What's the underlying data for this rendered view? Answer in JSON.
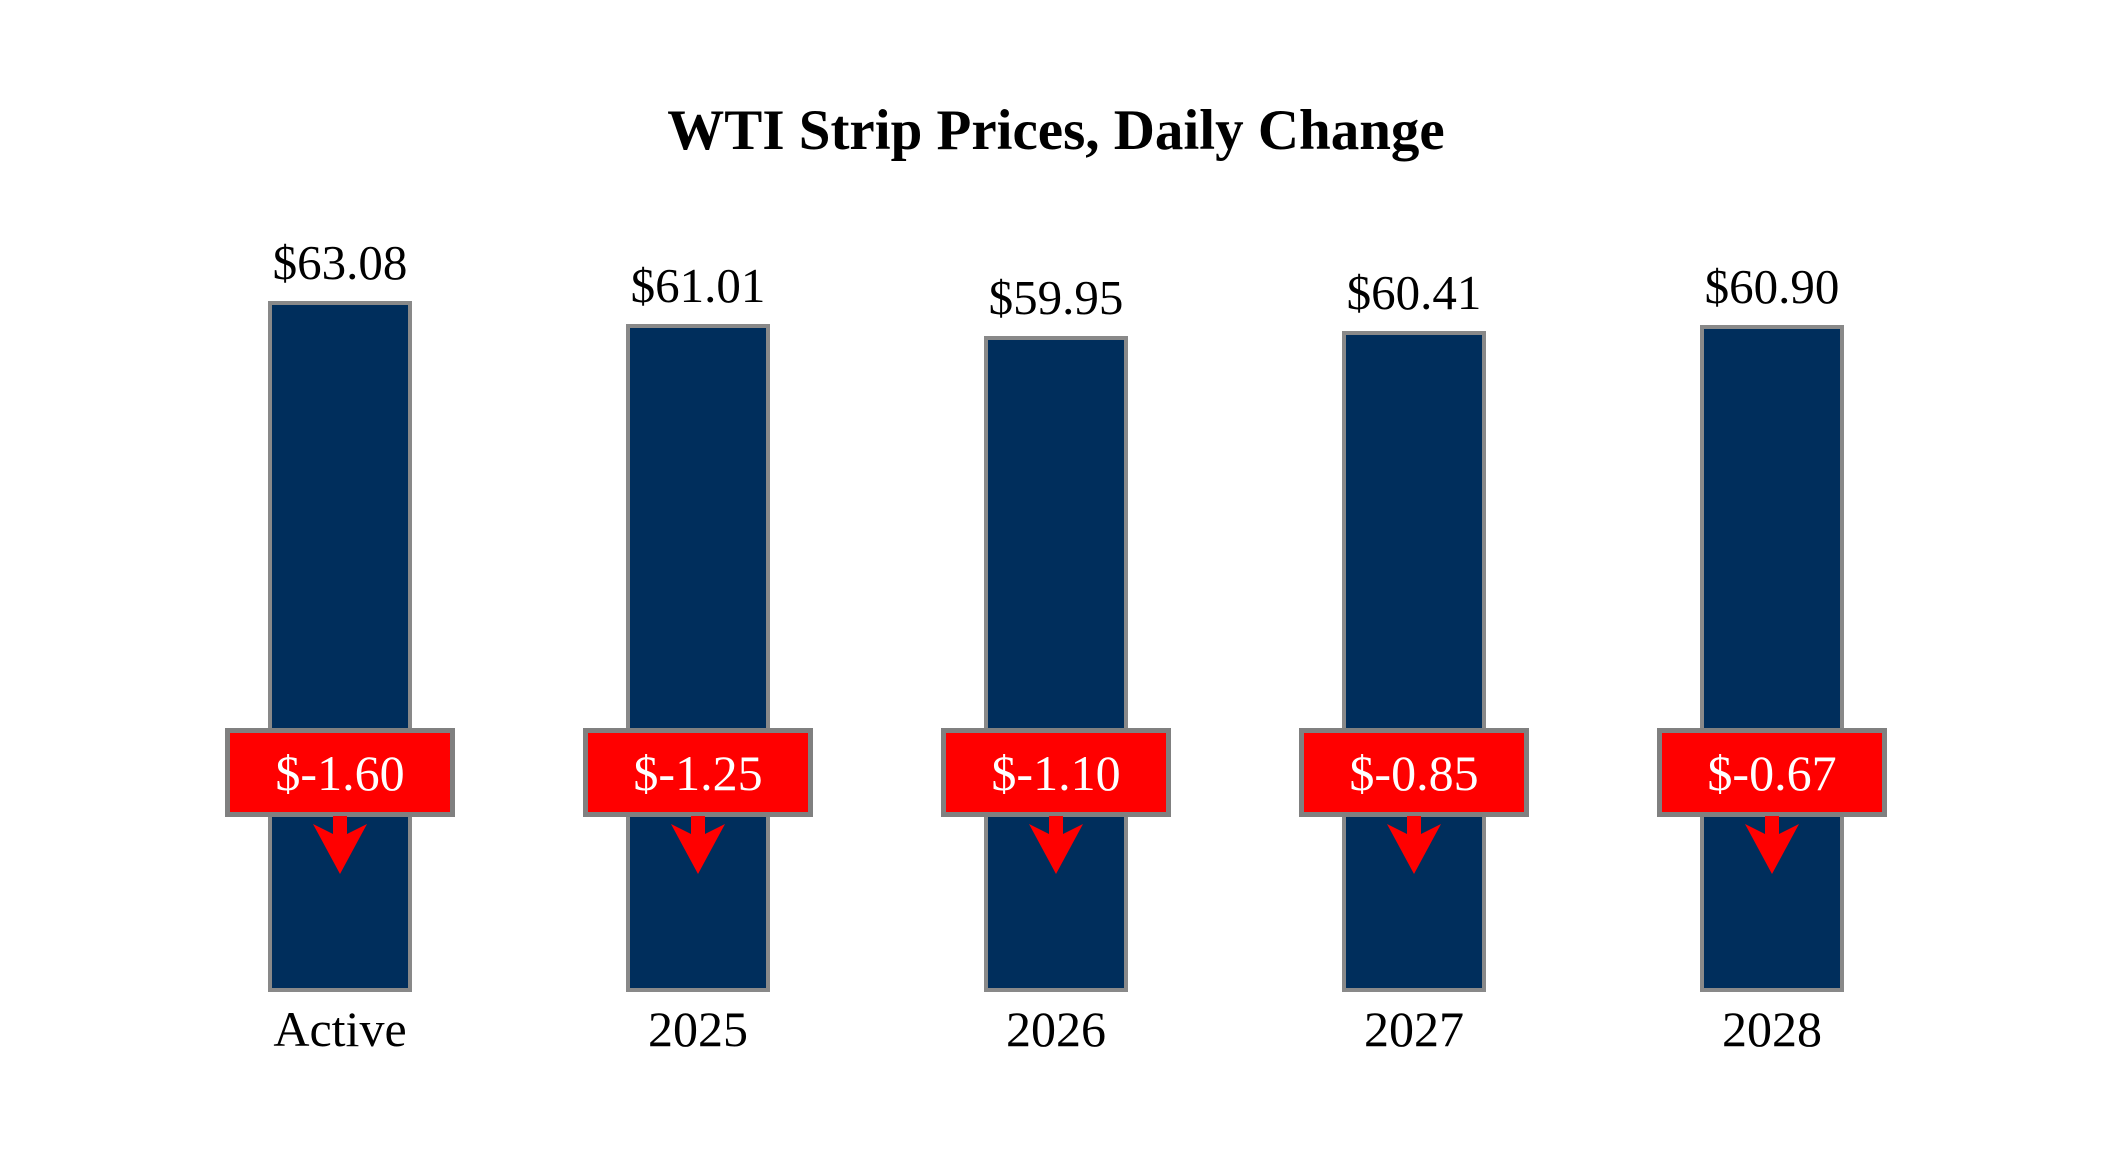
{
  "title": "WTI Strip Prices, Daily Change",
  "colors": {
    "background": "#FFFFFF",
    "bar_fill": "#002E5C",
    "bar_border": "#898989",
    "badge_fill": "#FF0000",
    "badge_border": "#808080",
    "badge_text": "#FFFFFF",
    "arrow": "#FF0000",
    "label_text": "#000000"
  },
  "chart_data": {
    "type": "bar",
    "title": "WTI Strip Prices, Daily Change",
    "categories": [
      "Active",
      "2025",
      "2026",
      "2027",
      "2028"
    ],
    "values": [
      63.08,
      61.01,
      59.95,
      60.41,
      60.9
    ],
    "value_labels": [
      "$63.08",
      "$61.01",
      "$59.95",
      "$60.41",
      "$60.90"
    ],
    "daily_change_values": [
      -1.6,
      -1.25,
      -1.1,
      -0.85,
      -0.67
    ],
    "daily_change_labels": [
      "$-1.60",
      "$-1.25",
      "$-1.10",
      "$-0.85",
      "$-0.67"
    ],
    "change_direction": [
      "down",
      "down",
      "down",
      "down",
      "down"
    ],
    "ylim": [
      0,
      63.08
    ],
    "grid": false,
    "legend": "none",
    "xlabel": "",
    "ylabel": ""
  }
}
